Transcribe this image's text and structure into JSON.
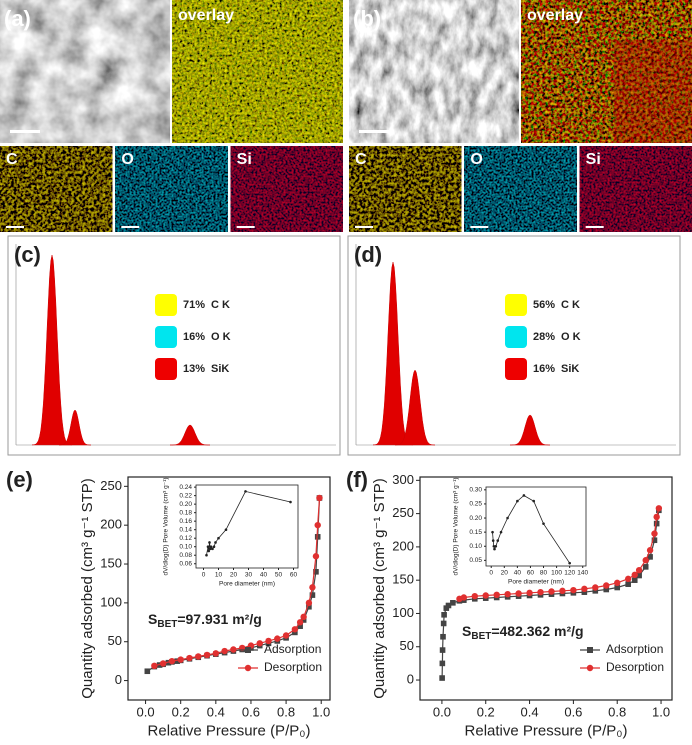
{
  "images": [
    {
      "label": "(a)",
      "overlay": "overlay",
      "maps": [
        "C",
        "O",
        "Si"
      ]
    },
    {
      "label": "(b)",
      "overlay": "overlay",
      "maps": [
        "C",
        "O",
        "Si"
      ]
    }
  ],
  "eds": [
    {
      "label": "(c)",
      "names": [
        "C K",
        "O K",
        "SiK"
      ],
      "values": [
        71,
        16,
        13
      ],
      "value_labels": [
        "71%",
        "16%",
        "13%"
      ],
      "colors": [
        "#ffff00",
        "#00e5ee",
        "#ee0000"
      ]
    },
    {
      "label": "(d)",
      "names": [
        "C K",
        "O K",
        "SiK"
      ],
      "values": [
        56,
        28,
        16
      ],
      "value_labels": [
        "56%",
        "28%",
        "16%"
      ],
      "colors": [
        "#ffff00",
        "#00e5ee",
        "#ee0000"
      ]
    }
  ],
  "chart_data": [
    {
      "type": "line",
      "label": "(e)",
      "xlabel": "Relative Pressure (P/P₀)",
      "ylabel": "Quantity adsorbed (cm³ g⁻¹ STP)",
      "xlim": [
        -0.1,
        1.05
      ],
      "ylim": [
        -25,
        262
      ],
      "xticks": [
        {
          "value": 0,
          "label": "0.0"
        },
        0.2,
        0.4,
        0.6,
        0.8,
        {
          "value": 1,
          "label": "1.0"
        }
      ],
      "yticks": [
        0,
        50,
        100,
        150,
        200,
        250
      ],
      "annotation": [
        "S",
        "BET",
        "=97.931 m²/g"
      ],
      "legend": "lower right",
      "series": [
        {
          "name": "Adsorption",
          "color": "#444444",
          "marker": "square",
          "x": [
            0.01,
            0.05,
            0.08,
            0.1,
            0.13,
            0.15,
            0.18,
            0.2,
            0.25,
            0.3,
            0.35,
            0.4,
            0.45,
            0.5,
            0.55,
            0.6,
            0.65,
            0.7,
            0.75,
            0.8,
            0.85,
            0.88,
            0.9,
            0.93,
            0.95,
            0.97,
            0.98,
            0.99
          ],
          "values": [
            12,
            18,
            20,
            21,
            23,
            24,
            25,
            26,
            28,
            30,
            32,
            34,
            36,
            38,
            40,
            42,
            45,
            48,
            51,
            55,
            62,
            70,
            78,
            95,
            110,
            140,
            185,
            235
          ]
        },
        {
          "name": "Desorption",
          "color": "#e03030",
          "marker": "circle",
          "x": [
            0.05,
            0.1,
            0.15,
            0.2,
            0.25,
            0.3,
            0.35,
            0.4,
            0.45,
            0.5,
            0.55,
            0.6,
            0.65,
            0.7,
            0.75,
            0.8,
            0.85,
            0.88,
            0.9,
            0.93,
            0.95,
            0.97,
            0.98,
            0.99
          ],
          "values": [
            19,
            22,
            25,
            27,
            29,
            31,
            33,
            35,
            38,
            40,
            42,
            45,
            48,
            51,
            54,
            58,
            66,
            75,
            82,
            100,
            120,
            160,
            200,
            235
          ]
        }
      ],
      "inset": {
        "type": "line",
        "xlabel": "Pore diameter (nm)",
        "ylabel": "dV/dlog(D) Pore Volume (cm³ g⁻¹)",
        "xlim": [
          -5,
          63
        ],
        "ylim": [
          0.05,
          0.245
        ],
        "xticks": [
          0,
          10,
          20,
          30,
          40,
          50,
          60
        ],
        "yticks": [
          0.06,
          0.08,
          {
            "value": 0.1,
            "label": "0.10"
          },
          0.12,
          0.14,
          0.16,
          0.18,
          {
            "value": 0.2,
            "label": "0.20"
          },
          0.22,
          0.24
        ],
        "series": [
          {
            "color": "#222222",
            "x": [
              2,
              3,
              3.5,
              4,
              4.5,
              5,
              6,
              7,
              8,
              10,
              15,
              28,
              58
            ],
            "values": [
              0.08,
              0.1,
              0.09,
              0.11,
              0.095,
              0.1,
              0.095,
              0.1,
              0.11,
              0.12,
              0.14,
              0.23,
              0.205
            ]
          }
        ]
      }
    },
    {
      "type": "line",
      "label": "(f)",
      "xlabel": "Relative Pressure (P/P₀)",
      "ylabel": "Quantity adsorbed (cm³ g⁻¹ STP)",
      "xlim": [
        -0.1,
        1.05
      ],
      "ylim": [
        -30,
        305
      ],
      "xticks": [
        {
          "value": 0,
          "label": "0.0"
        },
        0.2,
        0.4,
        0.6,
        0.8,
        {
          "value": 1,
          "label": "1.0"
        }
      ],
      "yticks": [
        0,
        50,
        100,
        150,
        200,
        250,
        300
      ],
      "annotation": [
        "S",
        "BET",
        "=482.362 m²/g"
      ],
      "legend": "lower right",
      "series": [
        {
          "name": "Adsorption",
          "color": "#444444",
          "marker": "square",
          "x": [
            0.001,
            0.002,
            0.003,
            0.005,
            0.008,
            0.01,
            0.02,
            0.03,
            0.05,
            0.08,
            0.1,
            0.15,
            0.2,
            0.25,
            0.3,
            0.35,
            0.4,
            0.45,
            0.5,
            0.55,
            0.6,
            0.65,
            0.7,
            0.75,
            0.8,
            0.85,
            0.88,
            0.9,
            0.93,
            0.95,
            0.97,
            0.98,
            0.99
          ],
          "values": [
            3,
            25,
            45,
            65,
            85,
            98,
            108,
            112,
            116,
            119,
            120,
            122,
            123,
            124,
            125,
            126,
            127,
            128,
            129,
            130,
            131,
            132,
            134,
            136,
            139,
            144,
            150,
            157,
            170,
            185,
            210,
            235,
            255
          ]
        },
        {
          "name": "Desorption",
          "color": "#e03030",
          "marker": "circle",
          "x": [
            0.08,
            0.1,
            0.15,
            0.2,
            0.25,
            0.3,
            0.35,
            0.4,
            0.45,
            0.5,
            0.55,
            0.6,
            0.65,
            0.7,
            0.75,
            0.8,
            0.85,
            0.88,
            0.9,
            0.93,
            0.95,
            0.97,
            0.98,
            0.99
          ],
          "values": [
            122,
            124,
            126,
            127,
            128,
            129,
            130,
            131,
            132,
            133,
            134,
            135,
            137,
            139,
            142,
            146,
            152,
            158,
            165,
            180,
            195,
            220,
            245,
            258
          ]
        }
      ],
      "inset": {
        "type": "line",
        "xlabel": "Pore diameter (nm)",
        "ylabel": "dV/dlog(D) Pore Volume (cm³ g⁻¹)",
        "xlim": [
          -8,
          145
        ],
        "ylim": [
          0.03,
          0.31
        ],
        "xticks": [
          0,
          20,
          40,
          60,
          80,
          100,
          120,
          140
        ],
        "yticks": [
          0.05,
          {
            "value": 0.1,
            "label": "0.10"
          },
          0.15,
          {
            "value": 0.2,
            "label": "0.20"
          },
          0.25,
          {
            "value": 0.3,
            "label": "0.30"
          }
        ],
        "series": [
          {
            "color": "#222222",
            "x": [
              2,
              3,
              4,
              5,
              7,
              10,
              15,
              25,
              40,
              50,
              65,
              80,
              120
            ],
            "values": [
              0.15,
              0.12,
              0.1,
              0.09,
              0.1,
              0.12,
              0.15,
              0.2,
              0.26,
              0.28,
              0.26,
              0.18,
              0.04
            ]
          }
        ]
      }
    }
  ]
}
